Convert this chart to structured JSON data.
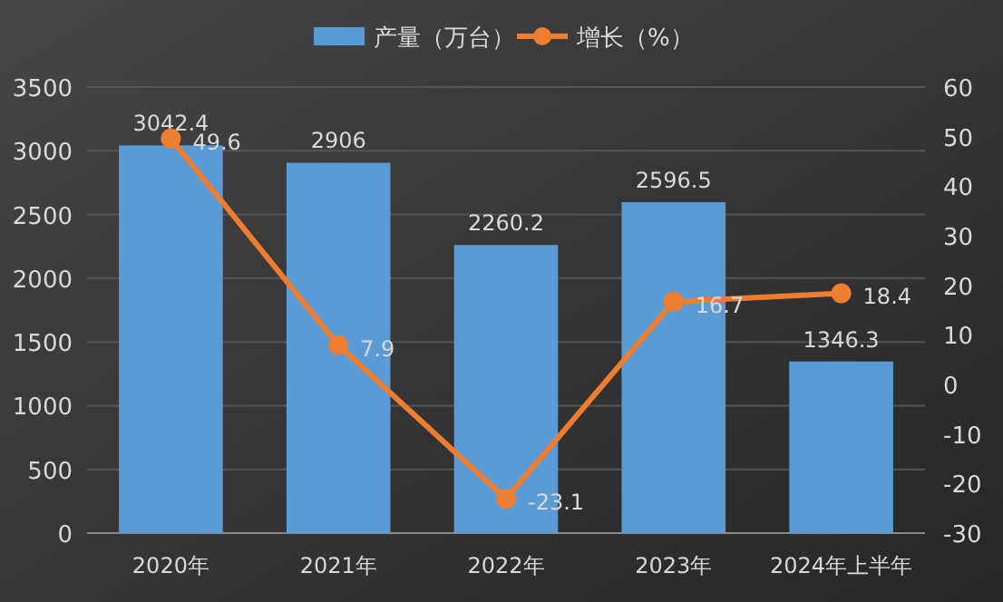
{
  "chart_data": {
    "type": "bar",
    "categories": [
      "2020年",
      "2021年",
      "2022年",
      "2023年",
      "2024年上半年"
    ],
    "series": [
      {
        "name": "产量（万台）",
        "color": "#5b9bd5",
        "values": [
          3042.4,
          2906,
          2260.2,
          2596.5,
          1346.3
        ]
      },
      {
        "name": "增长（%）",
        "type": "line",
        "axis": "y2",
        "color": "#ed7d31",
        "marker": "circle",
        "values": [
          49.6,
          7.9,
          -23.1,
          16.7,
          18.4
        ]
      }
    ],
    "ylim": [
      0,
      3500
    ],
    "yticks": [
      0,
      500,
      1000,
      1500,
      2000,
      2500,
      3000,
      3500
    ],
    "y2lim": [
      -30,
      60
    ],
    "y2ticks": [
      -30,
      -20,
      -10,
      0,
      10,
      20,
      30,
      40,
      50,
      60
    ],
    "grid": "y",
    "legend": "top",
    "data_labels": true
  }
}
